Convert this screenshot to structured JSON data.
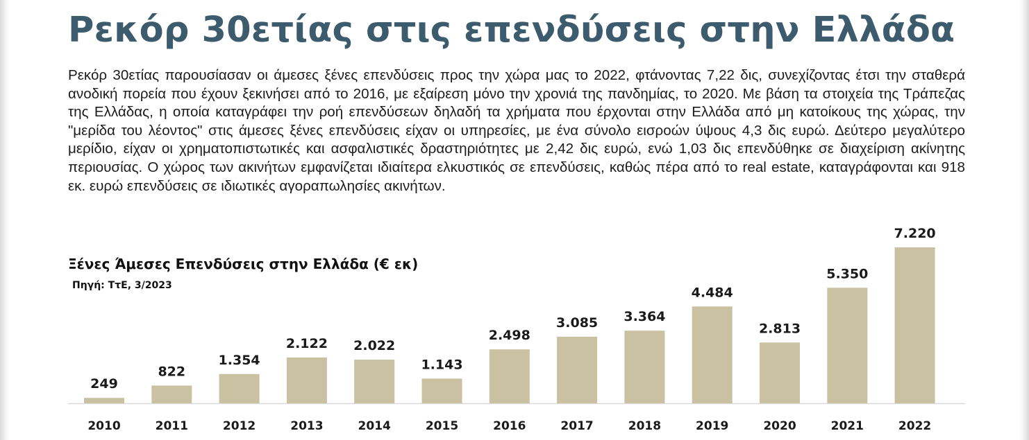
{
  "article": {
    "headline": "Ρεκόρ 30ετίας στις επενδύσεις στην Ελλάδα",
    "body": "Ρεκόρ 30ετίας παρουσίασαν οι άμεσες ξένες επενδύσεις προς την χώρα μας το 2022, φτάνοντας 7,22 δις, συνεχίζοντας έτσι την σταθερά ανοδική πορεία που έχουν ξεκινήσει από το 2016, με εξαίρεση μόνο την χρονιά της πανδημίας, το 2020. Με βάση τα στοιχεία της Τράπεζας της Ελλάδας, η οποία καταγράφει την ροή επενδύσεων δηλαδή τα χρήματα που έρχονται στην Ελλάδα από μη κατοίκους της χώρας, την \"μερίδα του λέοντος\" στις άμεσες ξένες επενδύσεις είχαν οι υπηρεσίες, με ένα σύνολο εισροών ύψους 4,3 δις ευρώ. Δεύτερο μεγαλύτερο μερίδιο, είχαν οι χρηματοπιστωτικές και ασφαλιστικές δραστηριότητες με 2,42 δις ευρώ, ενώ 1,03 δις επενδύθηκε σε διαχείριση ακίνητης περιουσίας. Ο χώρος των ακινήτων εμφανίζεται ιδιαίτερα ελκυστικός σε επενδύσεις, καθώς πέρα από το real estate, καταγράφονται και 918 εκ. ευρώ επενδύσεις σε ιδιωτικές αγοραπωλησίες ακινήτων."
  },
  "chart_data": {
    "type": "bar",
    "title": "Ξένες Άμεσες Επενδύσεις στην Ελλάδα (€ εκ)",
    "subtitle": "Πηγή: ΤτΕ, 3/2023",
    "categories": [
      "2010",
      "2011",
      "2012",
      "2013",
      "2014",
      "2015",
      "2016",
      "2017",
      "2018",
      "2019",
      "2020",
      "2021",
      "2022"
    ],
    "values": [
      249,
      822,
      1354,
      2122,
      2022,
      1143,
      2498,
      3085,
      3364,
      4484,
      2813,
      5350,
      7220
    ],
    "value_labels": [
      "249",
      "822",
      "1.354",
      "2.122",
      "2.022",
      "1.143",
      "2.498",
      "3.085",
      "3.364",
      "4.484",
      "2.813",
      "5.350",
      "7.220"
    ],
    "ylim": [
      0,
      7220
    ],
    "grid": false,
    "axes_visible": false,
    "bar_color": "#c9c1a1",
    "baseline_color": "#d9d9d9"
  }
}
